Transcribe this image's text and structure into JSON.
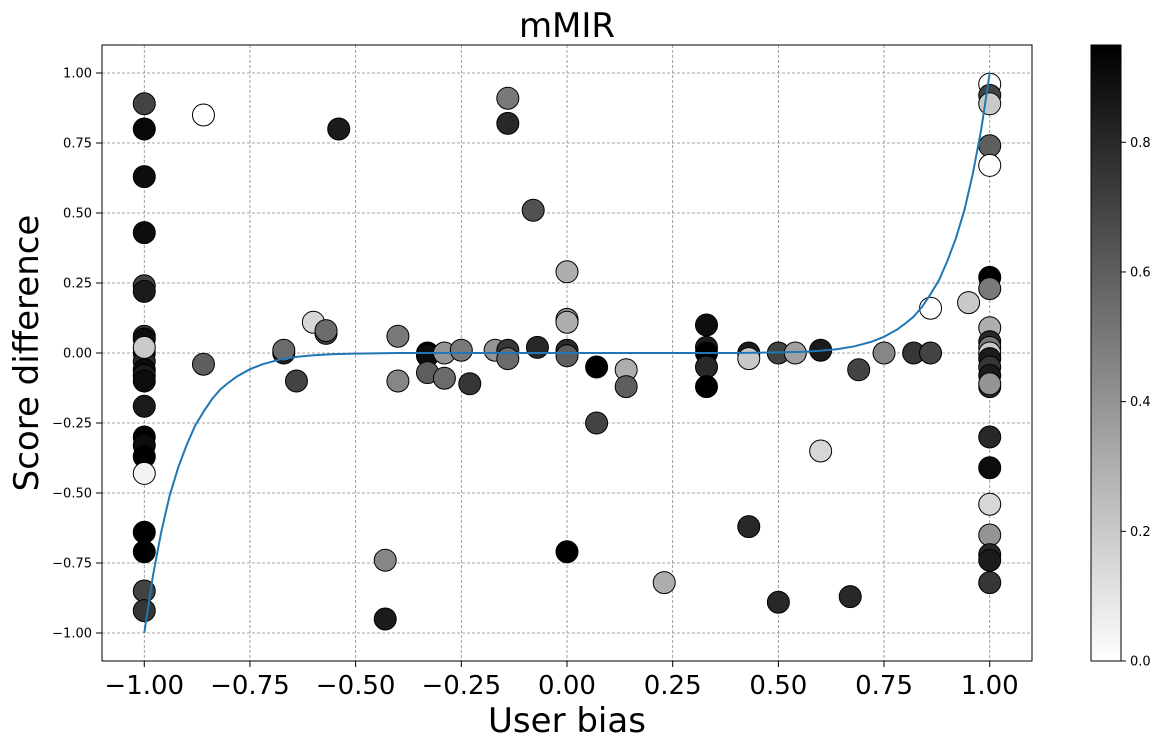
{
  "chart_data": {
    "type": "scatter",
    "title": "mMIR",
    "xlabel": "User bias",
    "ylabel": "Score difference",
    "xlim": [
      -1.1,
      1.1
    ],
    "ylim": [
      -1.1,
      1.1
    ],
    "xticks": [
      -1.0,
      -0.75,
      -0.5,
      -0.25,
      0.0,
      0.25,
      0.5,
      0.75,
      1.0
    ],
    "xtick_labels": [
      "−1.00",
      "−0.75",
      "−0.50",
      "−0.25",
      "0.00",
      "0.25",
      "0.50",
      "0.75",
      "1.00"
    ],
    "yticks": [
      -1.0,
      -0.75,
      -0.5,
      -0.25,
      0.0,
      0.25,
      0.5,
      0.75,
      1.0
    ],
    "ytick_labels": [
      "−1.00",
      "−0.75",
      "−0.50",
      "−0.25",
      "0.00",
      "0.25",
      "0.50",
      "0.75",
      "1.00"
    ],
    "grid": true,
    "colorbar": {
      "range": [
        0.0,
        0.95
      ],
      "ticks": [
        0.0,
        0.2,
        0.4,
        0.6,
        0.8
      ],
      "tick_labels": [
        "0.0",
        "0.2",
        "0.4",
        "0.6",
        "0.8"
      ],
      "colormap": "Greys"
    },
    "curve_color": "#1f77b4",
    "trend_curve": {
      "x": [
        -1.0,
        -0.98,
        -0.96,
        -0.94,
        -0.92,
        -0.9,
        -0.88,
        -0.86,
        -0.84,
        -0.82,
        -0.8,
        -0.78,
        -0.75,
        -0.72,
        -0.68,
        -0.64,
        -0.6,
        -0.55,
        -0.5,
        -0.4,
        -0.3,
        -0.2,
        -0.1,
        0.0,
        0.1,
        0.2,
        0.3,
        0.4,
        0.5,
        0.55,
        0.6,
        0.64,
        0.68,
        0.72,
        0.75,
        0.78,
        0.8,
        0.82,
        0.84,
        0.86,
        0.88,
        0.9,
        0.92,
        0.94,
        0.96,
        0.98,
        1.0
      ],
      "y": [
        -1.0,
        -0.8,
        -0.64,
        -0.51,
        -0.41,
        -0.33,
        -0.26,
        -0.21,
        -0.165,
        -0.13,
        -0.105,
        -0.083,
        -0.058,
        -0.04,
        -0.024,
        -0.014,
        -0.008,
        -0.004,
        -0.002,
        0.0,
        0.0,
        0.0,
        0.0,
        0.0,
        0.0,
        0.0,
        0.0,
        0.0,
        0.002,
        0.004,
        0.008,
        0.014,
        0.024,
        0.04,
        0.058,
        0.083,
        0.105,
        0.13,
        0.165,
        0.21,
        0.26,
        0.33,
        0.41,
        0.51,
        0.64,
        0.8,
        1.0
      ]
    },
    "points": [
      {
        "x": -1.0,
        "y": 0.89,
        "c": 0.7
      },
      {
        "x": -1.0,
        "y": 0.8,
        "c": 0.92
      },
      {
        "x": -1.0,
        "y": 0.63,
        "c": 0.9
      },
      {
        "x": -1.0,
        "y": 0.43,
        "c": 0.9
      },
      {
        "x": -1.0,
        "y": 0.24,
        "c": 0.7
      },
      {
        "x": -1.0,
        "y": 0.22,
        "c": 0.85
      },
      {
        "x": -1.0,
        "y": 0.06,
        "c": 0.75
      },
      {
        "x": -1.0,
        "y": 0.05,
        "c": 0.9
      },
      {
        "x": -1.0,
        "y": 0.0,
        "c": 0.85
      },
      {
        "x": -1.0,
        "y": -0.03,
        "c": 0.8
      },
      {
        "x": -1.0,
        "y": -0.06,
        "c": 0.9
      },
      {
        "x": -1.0,
        "y": -0.08,
        "c": 0.85
      },
      {
        "x": -1.0,
        "y": -0.1,
        "c": 0.9
      },
      {
        "x": -1.0,
        "y": -0.19,
        "c": 0.85
      },
      {
        "x": -1.0,
        "y": -0.3,
        "c": 0.95
      },
      {
        "x": -1.0,
        "y": -0.33,
        "c": 0.9
      },
      {
        "x": -1.0,
        "y": -0.37,
        "c": 0.95
      },
      {
        "x": -1.0,
        "y": -0.43,
        "c": 0.05
      },
      {
        "x": -1.0,
        "y": -0.64,
        "c": 0.95
      },
      {
        "x": -1.0,
        "y": -0.71,
        "c": 0.95
      },
      {
        "x": -1.0,
        "y": -0.85,
        "c": 0.7
      },
      {
        "x": -1.0,
        "y": -0.92,
        "c": 0.75
      },
      {
        "x": -1.0,
        "y": 0.02,
        "c": 0.2
      },
      {
        "x": -0.86,
        "y": 0.85,
        "c": 0.0
      },
      {
        "x": -0.86,
        "y": -0.04,
        "c": 0.6
      },
      {
        "x": -0.67,
        "y": 0.0,
        "c": 0.8
      },
      {
        "x": -0.67,
        "y": 0.01,
        "c": 0.55
      },
      {
        "x": -0.64,
        "y": -0.1,
        "c": 0.7
      },
      {
        "x": -0.6,
        "y": 0.11,
        "c": 0.15
      },
      {
        "x": -0.57,
        "y": 0.07,
        "c": 0.7
      },
      {
        "x": -0.57,
        "y": 0.08,
        "c": 0.55
      },
      {
        "x": -0.54,
        "y": 0.8,
        "c": 0.85
      },
      {
        "x": -0.43,
        "y": -0.74,
        "c": 0.45
      },
      {
        "x": -0.43,
        "y": -0.95,
        "c": 0.85
      },
      {
        "x": -0.4,
        "y": 0.06,
        "c": 0.5
      },
      {
        "x": -0.4,
        "y": -0.1,
        "c": 0.45
      },
      {
        "x": -0.33,
        "y": 0.0,
        "c": 0.95
      },
      {
        "x": -0.33,
        "y": -0.01,
        "c": 0.9
      },
      {
        "x": -0.33,
        "y": -0.07,
        "c": 0.6
      },
      {
        "x": -0.29,
        "y": 0.0,
        "c": 0.4
      },
      {
        "x": -0.29,
        "y": -0.09,
        "c": 0.55
      },
      {
        "x": -0.25,
        "y": 0.01,
        "c": 0.5
      },
      {
        "x": -0.23,
        "y": -0.11,
        "c": 0.75
      },
      {
        "x": -0.17,
        "y": 0.01,
        "c": 0.4
      },
      {
        "x": -0.14,
        "y": 0.91,
        "c": 0.5
      },
      {
        "x": -0.14,
        "y": 0.82,
        "c": 0.8
      },
      {
        "x": -0.14,
        "y": 0.01,
        "c": 0.75
      },
      {
        "x": -0.14,
        "y": -0.02,
        "c": 0.55
      },
      {
        "x": -0.08,
        "y": 0.51,
        "c": 0.65
      },
      {
        "x": -0.07,
        "y": 0.02,
        "c": 0.8
      },
      {
        "x": 0.0,
        "y": 0.29,
        "c": 0.3
      },
      {
        "x": 0.0,
        "y": 0.12,
        "c": 0.4
      },
      {
        "x": 0.0,
        "y": 0.11,
        "c": 0.3
      },
      {
        "x": 0.0,
        "y": 0.01,
        "c": 0.8
      },
      {
        "x": 0.0,
        "y": -0.01,
        "c": 0.6
      },
      {
        "x": 0.0,
        "y": -0.71,
        "c": 0.95
      },
      {
        "x": 0.07,
        "y": -0.05,
        "c": 0.95
      },
      {
        "x": 0.07,
        "y": -0.25,
        "c": 0.7
      },
      {
        "x": 0.14,
        "y": -0.06,
        "c": 0.3
      },
      {
        "x": 0.14,
        "y": -0.12,
        "c": 0.6
      },
      {
        "x": 0.23,
        "y": -0.82,
        "c": 0.3
      },
      {
        "x": 0.33,
        "y": 0.1,
        "c": 0.9
      },
      {
        "x": 0.33,
        "y": 0.02,
        "c": 0.85
      },
      {
        "x": 0.33,
        "y": 0.0,
        "c": 0.95
      },
      {
        "x": 0.33,
        "y": -0.05,
        "c": 0.8
      },
      {
        "x": 0.33,
        "y": -0.12,
        "c": 0.95
      },
      {
        "x": 0.43,
        "y": 0.0,
        "c": 0.85
      },
      {
        "x": 0.43,
        "y": -0.02,
        "c": 0.2
      },
      {
        "x": 0.43,
        "y": -0.62,
        "c": 0.8
      },
      {
        "x": 0.5,
        "y": 0.0,
        "c": 0.7
      },
      {
        "x": 0.5,
        "y": -0.89,
        "c": 0.8
      },
      {
        "x": 0.54,
        "y": 0.0,
        "c": 0.35
      },
      {
        "x": 0.6,
        "y": 0.01,
        "c": 0.85
      },
      {
        "x": 0.6,
        "y": -0.35,
        "c": 0.15
      },
      {
        "x": 0.67,
        "y": -0.87,
        "c": 0.8
      },
      {
        "x": 0.69,
        "y": -0.06,
        "c": 0.7
      },
      {
        "x": 0.75,
        "y": 0.0,
        "c": 0.45
      },
      {
        "x": 0.82,
        "y": 0.0,
        "c": 0.75
      },
      {
        "x": 0.86,
        "y": 0.0,
        "c": 0.7
      },
      {
        "x": 0.86,
        "y": 0.16,
        "c": 0.0
      },
      {
        "x": 0.95,
        "y": 0.18,
        "c": 0.2
      },
      {
        "x": 1.0,
        "y": 0.96,
        "c": 0.0
      },
      {
        "x": 1.0,
        "y": 0.92,
        "c": 0.7
      },
      {
        "x": 1.0,
        "y": 0.89,
        "c": 0.2
      },
      {
        "x": 1.0,
        "y": 0.74,
        "c": 0.6
      },
      {
        "x": 1.0,
        "y": 0.67,
        "c": 0.0
      },
      {
        "x": 1.0,
        "y": 0.27,
        "c": 0.95
      },
      {
        "x": 1.0,
        "y": 0.23,
        "c": 0.5
      },
      {
        "x": 1.0,
        "y": 0.09,
        "c": 0.3
      },
      {
        "x": 1.0,
        "y": 0.04,
        "c": 0.8
      },
      {
        "x": 1.0,
        "y": 0.02,
        "c": 0.5
      },
      {
        "x": 1.0,
        "y": 0.0,
        "c": 0.2
      },
      {
        "x": 1.0,
        "y": -0.02,
        "c": 0.85
      },
      {
        "x": 1.0,
        "y": -0.05,
        "c": 0.75
      },
      {
        "x": 1.0,
        "y": -0.08,
        "c": 0.85
      },
      {
        "x": 1.0,
        "y": -0.12,
        "c": 0.8
      },
      {
        "x": 1.0,
        "y": -0.11,
        "c": 0.4
      },
      {
        "x": 1.0,
        "y": -0.3,
        "c": 0.8
      },
      {
        "x": 1.0,
        "y": -0.41,
        "c": 0.9
      },
      {
        "x": 1.0,
        "y": -0.54,
        "c": 0.15
      },
      {
        "x": 1.0,
        "y": -0.65,
        "c": 0.4
      },
      {
        "x": 1.0,
        "y": -0.72,
        "c": 0.8
      },
      {
        "x": 1.0,
        "y": -0.74,
        "c": 0.85
      },
      {
        "x": 1.0,
        "y": -0.82,
        "c": 0.75
      }
    ]
  }
}
